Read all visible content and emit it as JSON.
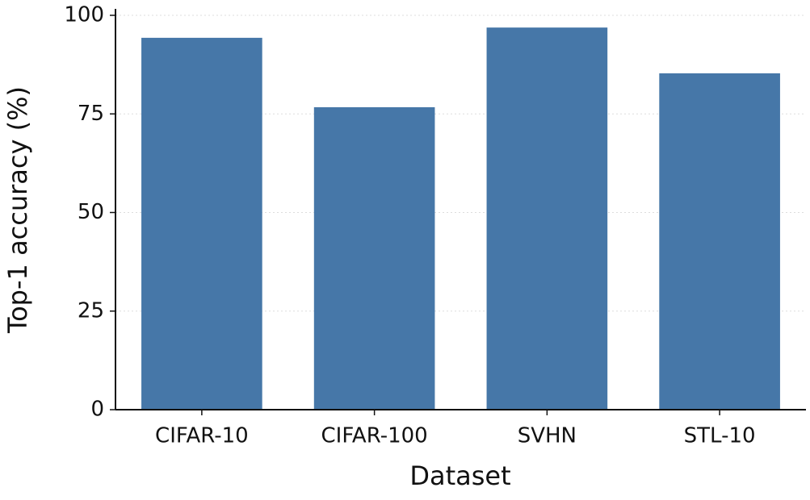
{
  "chart_data": {
    "type": "bar",
    "x_label": "Dataset",
    "y_label": "Top-1 accuracy (%)",
    "categories": [
      "CIFAR-10",
      "CIFAR-100",
      "SVHN",
      "STL-10"
    ],
    "values": [
      94.3,
      76.7,
      96.9,
      85.3
    ],
    "color": "#4677a8",
    "ylim": [
      0,
      100
    ],
    "yticks": [
      0,
      25,
      50,
      75,
      100
    ],
    "grid": true
  }
}
